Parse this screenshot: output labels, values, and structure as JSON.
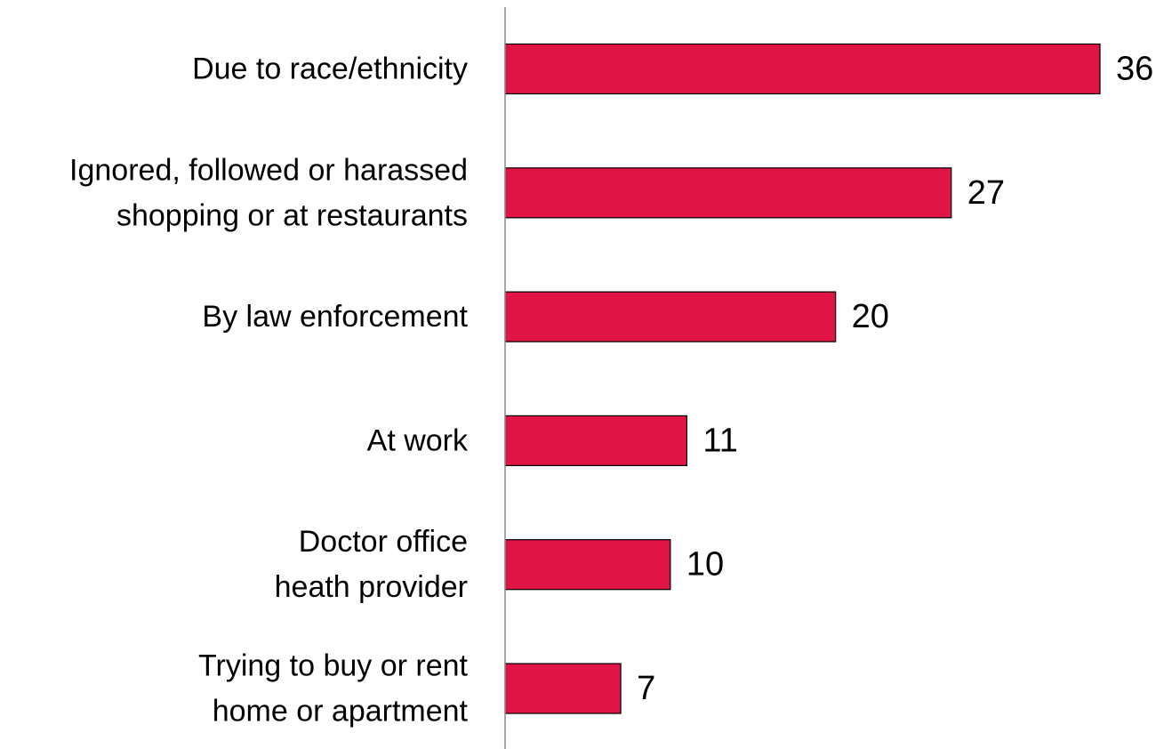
{
  "chart_data": {
    "type": "bar",
    "orientation": "horizontal",
    "categories": [
      [
        "Due to race/ethnicity"
      ],
      [
        "Ignored, followed or harassed",
        "shopping or at restaurants"
      ],
      [
        "By law enforcement"
      ],
      [
        "At work"
      ],
      [
        "Doctor office",
        "heath provider"
      ],
      [
        "Trying to buy or rent",
        "home or apartment"
      ]
    ],
    "values": [
      36,
      27,
      20,
      11,
      10,
      7
    ],
    "data_labels": [
      "36",
      "27",
      "20",
      "11",
      "10",
      "7"
    ],
    "xlim": [
      0,
      36
    ],
    "grid": false,
    "legend": "none",
    "colors": {
      "bar_fill": "#e11446",
      "bar_stroke": "#000000",
      "axis": "#8c8c8c"
    }
  }
}
